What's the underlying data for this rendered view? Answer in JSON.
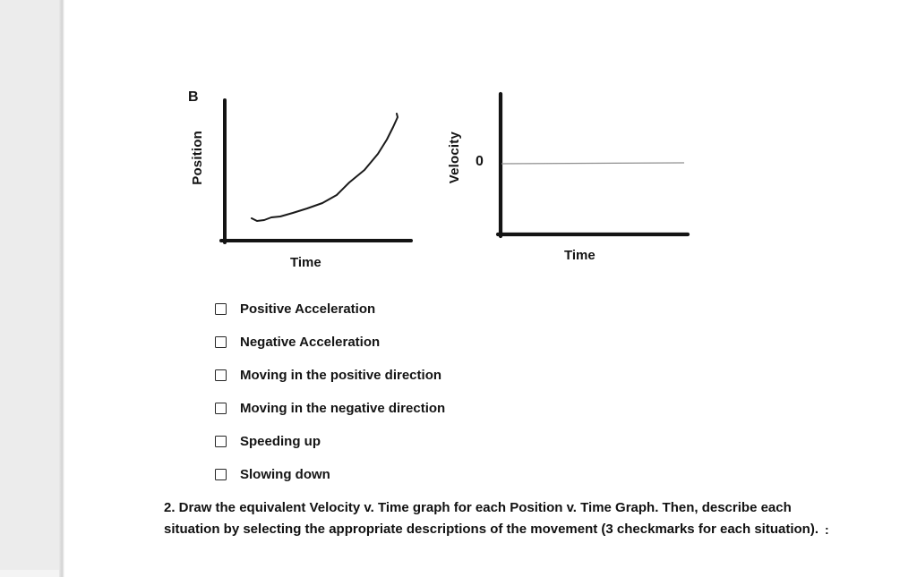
{
  "graphs": {
    "position_time": {
      "corner_label": "B",
      "y_axis_label": "Position",
      "x_axis_label": "Time",
      "curve_shape": "hand-drawn increasing concave-up curve starting low-left and rising steeply to upper right",
      "curve_points": [
        [
          81,
          148
        ],
        [
          87,
          151
        ],
        [
          95,
          150
        ],
        [
          103,
          147
        ],
        [
          113,
          146
        ],
        [
          127,
          142
        ],
        [
          143,
          137
        ],
        [
          160,
          131
        ],
        [
          176,
          122
        ],
        [
          190,
          108
        ],
        [
          207,
          94
        ],
        [
          222,
          76
        ],
        [
          232,
          60
        ],
        [
          239,
          46
        ],
        [
          244,
          35
        ],
        [
          243,
          31
        ]
      ]
    },
    "velocity_time": {
      "y_axis_label": "Velocity",
      "x_axis_label": "Time",
      "zero_tick_label": "0",
      "zero_line_points": [
        [
          60,
          87
        ],
        [
          264,
          86
        ]
      ]
    }
  },
  "checklist": {
    "items": [
      {
        "label": "Positive Acceleration",
        "checked": false
      },
      {
        "label": "Negative Acceleration",
        "checked": false
      },
      {
        "label": "Moving in the positive direction",
        "checked": false
      },
      {
        "label": "Moving in the negative direction",
        "checked": false
      },
      {
        "label": "Speeding up",
        "checked": false
      },
      {
        "label": "Slowing down",
        "checked": false
      }
    ]
  },
  "instruction": {
    "lines": [
      "2.  Draw the equivalent Velocity v. Time graph for each Position v. Time Graph.  Then, describe each",
      "situation by selecting the appropriate descriptions of the movement (3 checkmarks for each situation)."
    ],
    "trailing_mark": ":"
  },
  "colors": {
    "ink": "#161616",
    "axis": "#141414",
    "zero_line": "#8f8f8f",
    "gutter": "#ececec",
    "page": "#ffffff"
  }
}
